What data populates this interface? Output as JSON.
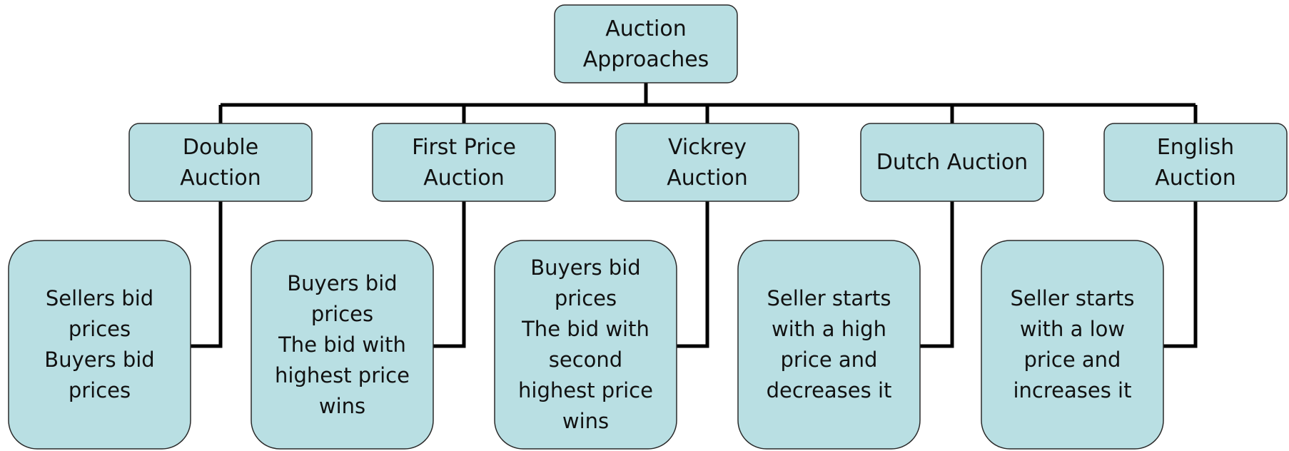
{
  "root": {
    "label": "Auction\nApproaches"
  },
  "children": [
    {
      "label": "Double\nAuction",
      "description": "Sellers bid\nprices\nBuyers bid\nprices"
    },
    {
      "label": "First Price\nAuction",
      "description": "Buyers bid\nprices\nThe bid with\nhighest price\nwins"
    },
    {
      "label": "Vickrey\nAuction",
      "description": "Buyers bid\nprices\nThe bid with\nsecond\nhighest price\nwins"
    },
    {
      "label": "Dutch Auction",
      "description": "Seller starts\nwith a high\nprice and\ndecreases it"
    },
    {
      "label": "English\nAuction",
      "description": "Seller starts\nwith a low\nprice and\nincreases it"
    }
  ]
}
